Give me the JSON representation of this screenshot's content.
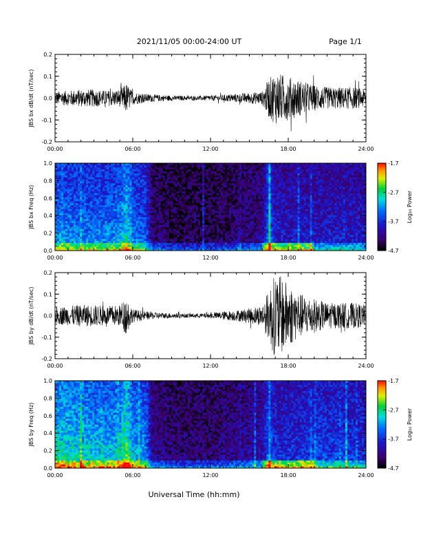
{
  "header": {
    "date_range": "2021/11/05  00:00-24:00 UT",
    "page": "Page 1/1"
  },
  "xaxis": {
    "title": "Universal Time (hh:mm)",
    "tick_labels": [
      "00:00",
      "06:00",
      "12:00",
      "18:00",
      "24:00"
    ],
    "range_hours": [
      0,
      24
    ]
  },
  "chart_data": [
    {
      "type": "line",
      "ylabel": "JBS bx dB/dt (nT/sec)",
      "ylim": [
        -0.2,
        0.2
      ],
      "yticks": [
        "0.2",
        "0.1",
        "0.0",
        "-0.1",
        "-0.2"
      ],
      "ytick_values": [
        0.2,
        0.1,
        0.0,
        -0.1,
        -0.2
      ],
      "envelope": {
        "hours": [
          0,
          1,
          2,
          3,
          4,
          5,
          5.5,
          6,
          7,
          8,
          9,
          10,
          11,
          12,
          13,
          14,
          15,
          16,
          16.5,
          17,
          17.5,
          18,
          18.5,
          19,
          20,
          21,
          22,
          23,
          24
        ],
        "amplitude": [
          0.03,
          0.035,
          0.04,
          0.04,
          0.035,
          0.04,
          0.07,
          0.03,
          0.02,
          0.015,
          0.012,
          0.01,
          0.01,
          0.012,
          0.015,
          0.02,
          0.025,
          0.03,
          0.09,
          0.12,
          0.11,
          0.1,
          0.09,
          0.08,
          0.06,
          0.05,
          0.05,
          0.05,
          0.04
        ]
      }
    },
    {
      "type": "heatmap",
      "ylabel": "JBS bx Freq (Hz)",
      "ylim": [
        0.0,
        1.0
      ],
      "yticks": [
        "1.0",
        "0.8",
        "0.6",
        "0.4",
        "0.2",
        "0.0"
      ],
      "ytick_values": [
        1.0,
        0.8,
        0.6,
        0.4,
        0.2,
        0.0
      ],
      "colorbar": {
        "label": "Log₁₀ Power",
        "range": [
          -4.7,
          -1.7
        ],
        "ticks": [
          "-1.7",
          "-2.7",
          "-3.7",
          "-4.7"
        ],
        "tick_values": [
          -1.7,
          -2.7,
          -3.7,
          -4.7
        ]
      },
      "activity": {
        "hours": [
          0,
          2,
          4,
          5,
          5.5,
          6,
          7,
          7.5,
          9,
          12,
          14,
          16,
          16.5,
          17,
          18,
          20,
          22,
          24
        ],
        "level": [
          0.55,
          0.5,
          0.5,
          0.55,
          0.7,
          0.5,
          0.45,
          0.15,
          0.1,
          0.1,
          0.15,
          0.2,
          0.5,
          0.3,
          0.3,
          0.3,
          0.3,
          0.3
        ]
      }
    },
    {
      "type": "line",
      "ylabel": "JBS by dB/dt (nT/sec)",
      "ylim": [
        -0.2,
        0.2
      ],
      "yticks": [
        "0.2",
        "0.1",
        "0.0",
        "-0.1",
        "-0.2"
      ],
      "ytick_values": [
        0.2,
        0.1,
        0.0,
        -0.1,
        -0.2
      ],
      "envelope": {
        "hours": [
          0,
          1,
          2,
          3,
          4,
          5,
          5.5,
          6,
          7,
          8,
          9,
          10,
          11,
          12,
          13,
          14,
          15,
          16,
          16.5,
          17,
          17.5,
          18,
          18.5,
          19,
          20,
          21,
          22,
          23,
          24
        ],
        "amplitude": [
          0.04,
          0.045,
          0.05,
          0.05,
          0.045,
          0.05,
          0.09,
          0.03,
          0.02,
          0.015,
          0.012,
          0.01,
          0.01,
          0.012,
          0.02,
          0.025,
          0.035,
          0.05,
          0.12,
          0.2,
          0.18,
          0.15,
          0.12,
          0.1,
          0.08,
          0.06,
          0.06,
          0.06,
          0.05
        ]
      }
    },
    {
      "type": "heatmap",
      "ylabel": "JBS by Freq (Hz)",
      "ylim": [
        0.0,
        1.0
      ],
      "yticks": [
        "1.0",
        "0.8",
        "0.6",
        "0.4",
        "0.2",
        "0.0"
      ],
      "ytick_values": [
        1.0,
        0.8,
        0.6,
        0.4,
        0.2,
        0.0
      ],
      "colorbar": {
        "label": "Log₁₀ Power",
        "range": [
          -4.7,
          -1.7
        ],
        "ticks": [
          "-1.7",
          "-2.7",
          "-3.7",
          "-4.7"
        ],
        "tick_values": [
          -1.7,
          -2.7,
          -3.7,
          -4.7
        ]
      },
      "activity": {
        "hours": [
          0,
          2,
          4,
          5,
          5.5,
          6,
          7,
          7.5,
          9,
          12,
          14,
          16,
          16.5,
          17,
          18,
          20,
          22,
          24
        ],
        "level": [
          0.7,
          0.65,
          0.6,
          0.65,
          0.8,
          0.6,
          0.55,
          0.2,
          0.15,
          0.15,
          0.2,
          0.25,
          0.5,
          0.35,
          0.35,
          0.4,
          0.4,
          0.35
        ]
      }
    }
  ]
}
